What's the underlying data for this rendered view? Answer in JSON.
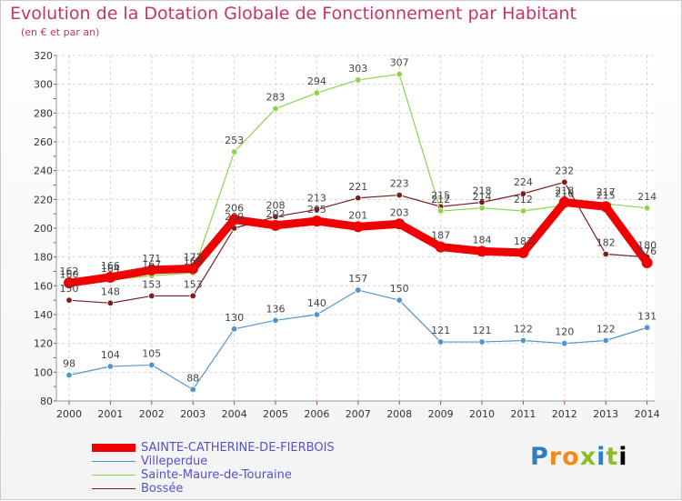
{
  "header": {
    "title": "Evolution de la Dotation Globale de Fonctionnement par Habitant",
    "subtitle": "(en € et par an)"
  },
  "logo": {
    "text": "Proxiti"
  },
  "chart_data": {
    "type": "line",
    "x": [
      2000,
      2001,
      2002,
      2003,
      2004,
      2005,
      2006,
      2007,
      2008,
      2009,
      2010,
      2011,
      2012,
      2013,
      2014
    ],
    "ylim": [
      80,
      320
    ],
    "yticks": [
      80,
      100,
      120,
      140,
      160,
      180,
      200,
      220,
      240,
      260,
      280,
      300,
      320
    ],
    "grid": true,
    "legend": "bottom-left",
    "series": [
      {
        "name": "Bossée",
        "color": "#7a1e1e",
        "values": [
          150,
          148,
          153,
          153,
          200,
          208,
          213,
          221,
          223,
          215,
          218,
          224,
          232,
          182,
          180
        ]
      },
      {
        "name": "Villeperdue",
        "color": "#4f96d0",
        "values": [
          98,
          104,
          105,
          88,
          130,
          136,
          140,
          157,
          150,
          121,
          121,
          122,
          120,
          122,
          131
        ]
      },
      {
        "name": "Sainte-Maure-de-Touraine",
        "color": "#8cd44c",
        "values": [
          160,
          164,
          167,
          169,
          253,
          283,
          294,
          303,
          307,
          212,
          214,
          212,
          216,
          217,
          214
        ]
      },
      {
        "name": "SAINTE-CATHERINE-DE-FIERBOIS",
        "color": "#f00000",
        "values": [
          162,
          166,
          171,
          172,
          206,
          202,
          205,
          201,
          203,
          187,
          184,
          183,
          218,
          215,
          176
        ]
      }
    ],
    "legend_order": [
      "SAINTE-CATHERINE-DE-FIERBOIS",
      "Villeperdue",
      "Sainte-Maure-de-Touraine",
      "Bossée"
    ]
  }
}
